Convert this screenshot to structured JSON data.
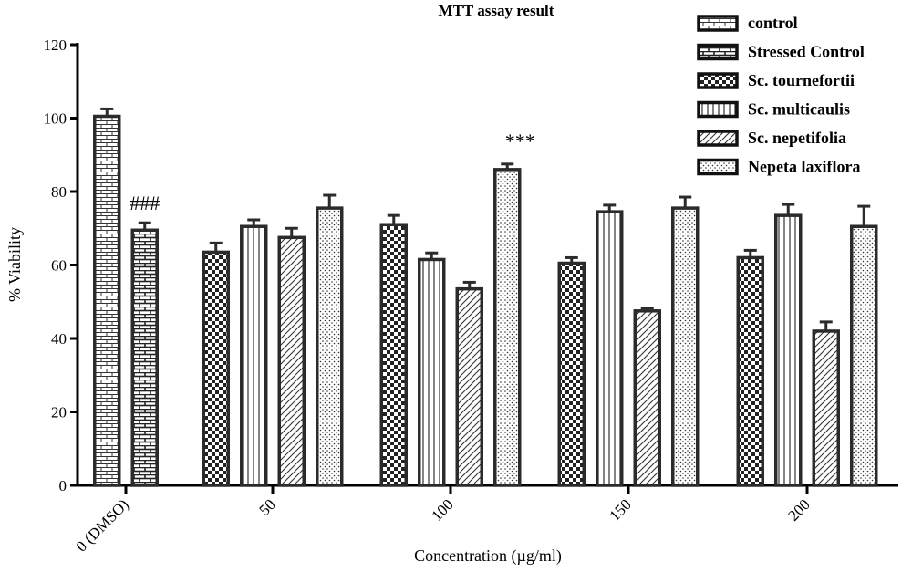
{
  "chart_data": {
    "type": "bar",
    "title": "MTT assay result",
    "xlabel": "Concentration (µg/ml)",
    "ylabel": "% Viability",
    "ylim": [
      0,
      120
    ],
    "yticks": [
      "0",
      "20",
      "40",
      "60",
      "80",
      "100",
      "120"
    ],
    "groups": [
      {
        "label": "0 (DMSO)",
        "bars": [
          {
            "series": "control",
            "value": 100.5,
            "err": 2.0
          },
          {
            "series": "Stressed Control",
            "value": 69.5,
            "err": 2.0,
            "annotation": "###"
          }
        ]
      },
      {
        "label": "50",
        "bars": [
          {
            "series": "Sc. tournefortii",
            "value": 63.5,
            "err": 2.5
          },
          {
            "series": "Sc. multicaulis",
            "value": 70.5,
            "err": 1.8
          },
          {
            "series": "Sc. nepetifolia",
            "value": 67.5,
            "err": 2.5
          },
          {
            "series": "Nepeta laxiflora",
            "value": 75.5,
            "err": 3.5
          }
        ]
      },
      {
        "label": "100",
        "bars": [
          {
            "series": "Sc. tournefortii",
            "value": 71.0,
            "err": 2.5
          },
          {
            "series": "Sc. multicaulis",
            "value": 61.5,
            "err": 1.8
          },
          {
            "series": "Sc. nepetifolia",
            "value": 53.5,
            "err": 1.8
          },
          {
            "series": "Nepeta laxiflora",
            "value": 86.0,
            "err": 1.5,
            "annotation": "***"
          }
        ]
      },
      {
        "label": "150",
        "bars": [
          {
            "series": "Sc. tournefortii",
            "value": 60.5,
            "err": 1.5
          },
          {
            "series": "Sc. multicaulis",
            "value": 74.5,
            "err": 1.8
          },
          {
            "series": "Sc. nepetifolia",
            "value": 47.5,
            "err": 0.8
          },
          {
            "series": "Nepeta laxiflora",
            "value": 75.5,
            "err": 3.0
          }
        ]
      },
      {
        "label": "200",
        "bars": [
          {
            "series": "Sc. tournefortii",
            "value": 62.0,
            "err": 2.0
          },
          {
            "series": "Sc. multicaulis",
            "value": 73.5,
            "err": 3.0
          },
          {
            "series": "Sc. nepetifolia",
            "value": 42.0,
            "err": 2.5
          },
          {
            "series": "Nepeta laxiflora",
            "value": 70.5,
            "err": 5.5
          }
        ]
      }
    ],
    "legend": [
      {
        "name": "control",
        "pattern": "brick"
      },
      {
        "name": "Stressed Control",
        "pattern": "brick-dark"
      },
      {
        "name": "Sc. tournefortii",
        "pattern": "checker"
      },
      {
        "name": "Sc. multicaulis",
        "pattern": "vlines"
      },
      {
        "name": "Sc. nepetifolia",
        "pattern": "diag"
      },
      {
        "name": "Nepeta laxiflora",
        "pattern": "dots"
      }
    ],
    "legend_position": "top-right",
    "grid": false
  }
}
